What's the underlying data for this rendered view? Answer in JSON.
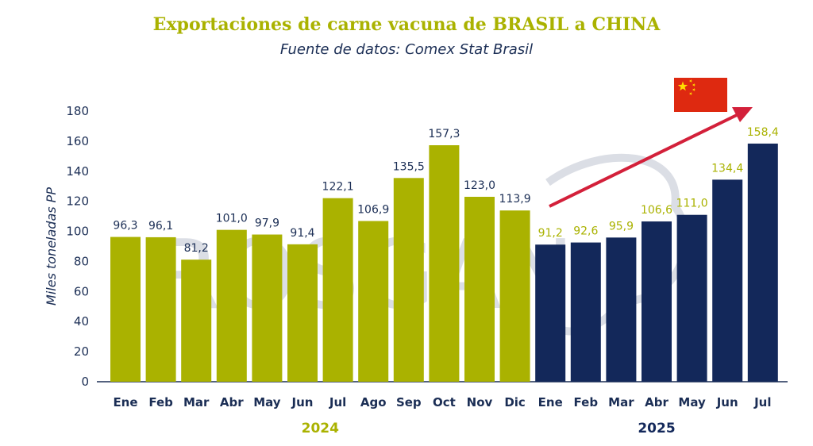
{
  "chart_data": {
    "type": "bar",
    "title": "Exportaciones de carne vacuna de BRASIL a CHINA",
    "subtitle": "Fuente de datos: Comex Stat Brasil",
    "ylabel": "Miles toneladas PP",
    "ylim": [
      0,
      180
    ],
    "yticks": [
      0,
      20,
      40,
      60,
      80,
      100,
      120,
      140,
      160,
      180
    ],
    "grid": false,
    "groups": [
      {
        "name": "2024",
        "color": "#aab200",
        "categories": [
          "Ene",
          "Feb",
          "Mar",
          "Abr",
          "May",
          "Jun",
          "Jul",
          "Ago",
          "Sep",
          "Oct",
          "Nov",
          "Dic"
        ],
        "values": [
          96.3,
          96.1,
          81.2,
          101.0,
          97.9,
          91.4,
          122.1,
          106.9,
          135.5,
          157.3,
          123.0,
          113.9
        ],
        "labels": [
          "96,3",
          "96,1",
          "81,2",
          "101,0",
          "97,9",
          "91,4",
          "122,1",
          "106,9",
          "135,5",
          "157,3",
          "123,0",
          "113,9"
        ]
      },
      {
        "name": "2025",
        "color": "#13285a",
        "categories": [
          "Ene",
          "Feb",
          "Mar",
          "Abr",
          "May",
          "Jun",
          "Jul"
        ],
        "values": [
          91.2,
          92.6,
          95.9,
          106.6,
          111.0,
          134.4,
          158.4
        ],
        "labels": [
          "91,2",
          "92,6",
          "95,9",
          "106,6",
          "111,0",
          "134,4",
          "158,4"
        ]
      }
    ],
    "label_colors": {
      "on_olive": "#1b2e55",
      "on_navy": "#aab200"
    },
    "axis_color": "#1b2e55",
    "trend_arrow_color": "#d3203a"
  },
  "watermark": {
    "text": "ROSGAN"
  },
  "flag": {
    "name": "china-flag-icon",
    "red": "#de2910",
    "yellow": "#ffde00"
  }
}
